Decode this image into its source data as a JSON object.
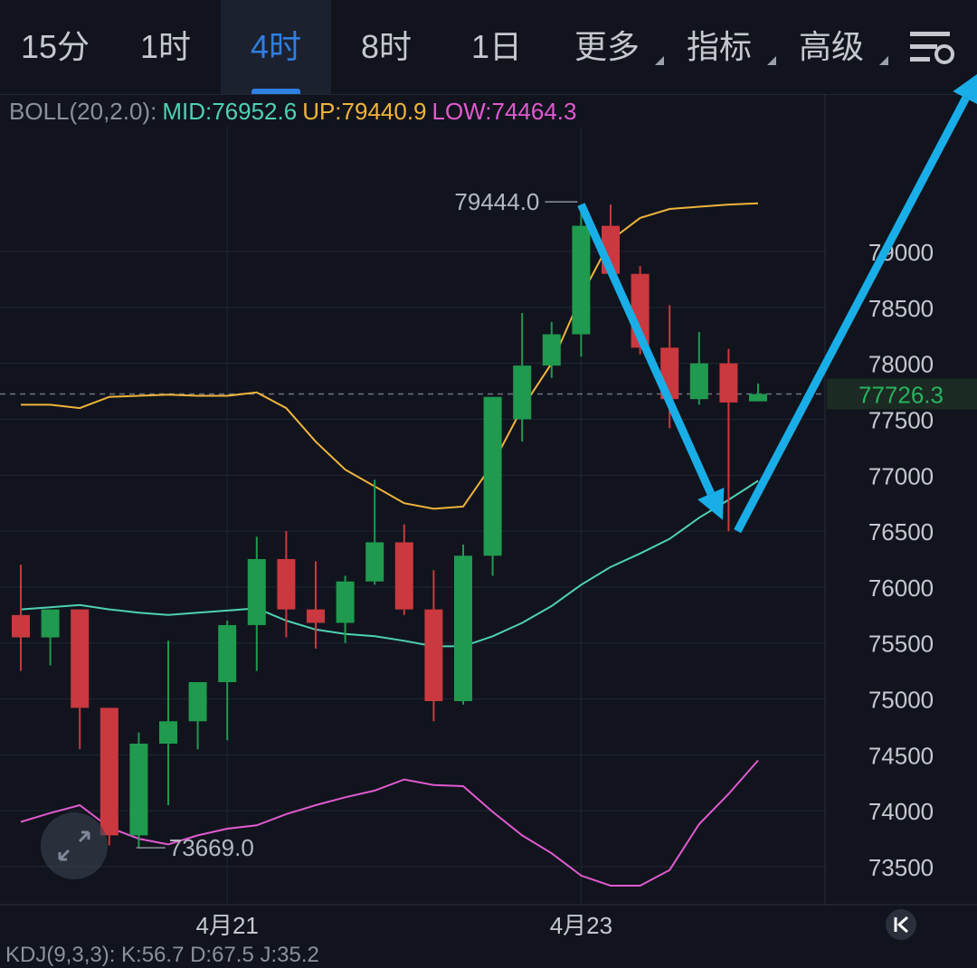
{
  "tabs": [
    {
      "label": "15分",
      "active": false,
      "has_menu": false
    },
    {
      "label": "1时",
      "active": false,
      "has_menu": false
    },
    {
      "label": "4时",
      "active": true,
      "has_menu": false
    },
    {
      "label": "8时",
      "active": false,
      "has_menu": false
    },
    {
      "label": "1日",
      "active": false,
      "has_menu": false
    },
    {
      "label": "更多",
      "active": false,
      "has_menu": true
    },
    {
      "label": "指标",
      "active": false,
      "has_menu": true
    },
    {
      "label": "高级",
      "active": false,
      "has_menu": true
    }
  ],
  "settings_icon": "chart-settings-icon",
  "legend": {
    "name": "BOLL(20,2.0):",
    "mid": "MID:76952.6",
    "up": "UP:79440.9",
    "low": "LOW:74464.3"
  },
  "colors": {
    "background": "#11141d",
    "up_candle": "#1f9a4f",
    "down_candle": "#c9393f",
    "mid_line": "#4fd1b4",
    "upper_line": "#f0b43c",
    "lower_line": "#e05ad0",
    "arrow": "#19aee8",
    "active_tab": "#2f7fe0"
  },
  "chart_data": {
    "type": "candlestick",
    "ylim": [
      73200,
      80200
    ],
    "y_ticks": [
      73500,
      74000,
      74500,
      75000,
      75500,
      76000,
      76500,
      77000,
      77500,
      78000,
      78500,
      79000
    ],
    "x_tick_labels": [
      {
        "label": "4月21",
        "index": 7
      },
      {
        "label": "4月23",
        "index": 19
      }
    ],
    "current_price": 77726.3,
    "current_price_label": "77726.3",
    "high_marker": {
      "label": "79444.0",
      "value": 79444.0,
      "index": 19
    },
    "low_marker": {
      "label": "73669.0",
      "value": 73669.0,
      "index": 3
    },
    "candles": [
      {
        "o": 75750,
        "h": 76200,
        "l": 75250,
        "c": 75550
      },
      {
        "o": 75550,
        "h": 75800,
        "l": 75300,
        "c": 75800
      },
      {
        "o": 75800,
        "h": 75800,
        "l": 74550,
        "c": 74920
      },
      {
        "o": 74920,
        "h": 74920,
        "l": 73690,
        "c": 73780
      },
      {
        "o": 73780,
        "h": 74700,
        "l": 73669,
        "c": 74600
      },
      {
        "o": 74600,
        "h": 75520,
        "l": 74050,
        "c": 74800
      },
      {
        "o": 74800,
        "h": 75150,
        "l": 74550,
        "c": 75150
      },
      {
        "o": 75150,
        "h": 75700,
        "l": 74630,
        "c": 75660
      },
      {
        "o": 75660,
        "h": 76450,
        "l": 75250,
        "c": 76250
      },
      {
        "o": 76250,
        "h": 76500,
        "l": 75550,
        "c": 75800
      },
      {
        "o": 75800,
        "h": 76230,
        "l": 75450,
        "c": 75680
      },
      {
        "o": 75680,
        "h": 76100,
        "l": 75500,
        "c": 76050
      },
      {
        "o": 76050,
        "h": 76960,
        "l": 76020,
        "c": 76400
      },
      {
        "o": 76400,
        "h": 76560,
        "l": 75750,
        "c": 75800
      },
      {
        "o": 75800,
        "h": 76150,
        "l": 74800,
        "c": 74980
      },
      {
        "o": 74980,
        "h": 76380,
        "l": 74950,
        "c": 76280
      },
      {
        "o": 76280,
        "h": 77700,
        "l": 76100,
        "c": 77700
      },
      {
        "o": 77500,
        "h": 78450,
        "l": 77300,
        "c": 77980
      },
      {
        "o": 77980,
        "h": 78370,
        "l": 77870,
        "c": 78260
      },
      {
        "o": 78260,
        "h": 79380,
        "l": 78060,
        "c": 79230
      },
      {
        "o": 79230,
        "h": 79420,
        "l": 78780,
        "c": 78800
      },
      {
        "o": 78800,
        "h": 78870,
        "l": 78080,
        "c": 78140
      },
      {
        "o": 78140,
        "h": 78520,
        "l": 77420,
        "c": 77680
      },
      {
        "o": 77680,
        "h": 78280,
        "l": 77630,
        "c": 78000
      },
      {
        "o": 78000,
        "h": 78130,
        "l": 76500,
        "c": 77650
      },
      {
        "o": 77660,
        "h": 77820,
        "l": 77660,
        "c": 77726
      }
    ],
    "series": [
      {
        "values": [
          77630,
          77630,
          77600,
          77700,
          77710,
          77720,
          77710,
          77710,
          77740,
          77600,
          77300,
          77050,
          76900,
          76750,
          76700,
          76720,
          77100,
          77600,
          78000,
          78600,
          79100,
          79300,
          79380,
          79400,
          79420,
          79430
        ]
      },
      {
        "values": [
          75800,
          75820,
          75840,
          75800,
          75770,
          75750,
          75770,
          75790,
          75810,
          75700,
          75620,
          75580,
          75560,
          75520,
          75470,
          75470,
          75560,
          75680,
          75830,
          76020,
          76180,
          76300,
          76430,
          76620,
          76780,
          76950
        ]
      },
      {
        "values": [
          73900,
          73980,
          74050,
          73850,
          73750,
          73700,
          73780,
          73840,
          73870,
          73970,
          74050,
          74120,
          74180,
          74280,
          74230,
          74220,
          73990,
          73780,
          73620,
          73420,
          73330,
          73330,
          73470,
          73880,
          74150,
          74450
        ]
      }
    ],
    "annotation_arrows": [
      {
        "from": {
          "index": 19,
          "value": 79420
        },
        "to": {
          "index": 23.8,
          "value": 76600
        }
      },
      {
        "from": {
          "index": 24.3,
          "value": 76500
        },
        "to": {
          "index": 32.5,
          "value": 80600
        }
      }
    ]
  },
  "next_indicator": "KDJ(9,3,3): K:56.7 D:67.5 J:35.2"
}
